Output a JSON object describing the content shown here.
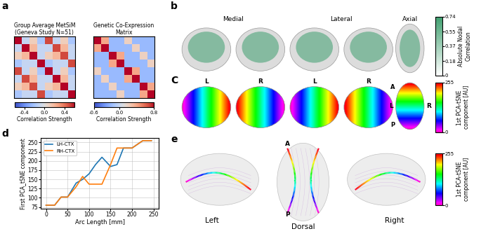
{
  "panels": {
    "a": {
      "label": "a",
      "heatmaps": [
        {
          "title": "Group Average MetSiM\n(Geneva Study N=51)",
          "cells": [
            [
              0.6,
              -0.1,
              0.1,
              -0.2,
              0.5,
              -0.1,
              0.1,
              -0.2
            ],
            [
              -0.1,
              0.6,
              0.2,
              -0.1,
              -0.1,
              0.5,
              0.2,
              -0.1
            ],
            [
              0.1,
              0.2,
              0.6,
              -0.1,
              0.1,
              0.2,
              0.5,
              -0.1
            ],
            [
              -0.2,
              -0.1,
              -0.1,
              0.6,
              -0.2,
              -0.1,
              -0.1,
              0.5
            ],
            [
              0.5,
              -0.1,
              0.1,
              -0.2,
              0.6,
              -0.1,
              0.1,
              -0.2
            ],
            [
              -0.1,
              0.5,
              0.2,
              -0.1,
              -0.1,
              0.6,
              0.2,
              -0.1
            ],
            [
              0.1,
              0.2,
              0.5,
              -0.1,
              0.1,
              0.2,
              0.6,
              -0.1
            ],
            [
              -0.2,
              -0.1,
              -0.1,
              0.5,
              -0.2,
              -0.1,
              -0.1,
              0.6
            ]
          ],
          "colorbar": {
            "label": "Correlation Strength",
            "range": [
              -0.6,
              0.6
            ],
            "ticks": [
              -0.4,
              0.0,
              0.4
            ]
          }
        },
        {
          "title": "Genetic Co-Expression\nMatrix",
          "cells": [
            [
              0.8,
              0.4,
              -0.2,
              -0.2,
              0.2,
              -0.2,
              -0.2,
              -0.2
            ],
            [
              0.4,
              0.8,
              -0.2,
              -0.2,
              -0.2,
              0.2,
              -0.2,
              -0.2
            ],
            [
              -0.2,
              -0.2,
              0.8,
              0.4,
              -0.2,
              -0.2,
              0.2,
              -0.2
            ],
            [
              -0.2,
              -0.2,
              0.4,
              0.8,
              -0.2,
              -0.2,
              -0.2,
              0.2
            ],
            [
              0.2,
              -0.2,
              -0.2,
              -0.2,
              0.8,
              0.4,
              -0.2,
              -0.2
            ],
            [
              -0.2,
              0.2,
              -0.2,
              -0.2,
              0.4,
              0.8,
              -0.2,
              -0.2
            ],
            [
              -0.2,
              -0.2,
              0.2,
              -0.2,
              -0.2,
              -0.2,
              0.8,
              0.4
            ],
            [
              -0.2,
              -0.2,
              -0.2,
              0.2,
              -0.2,
              -0.2,
              0.4,
              0.8
            ]
          ],
          "colorbar": {
            "label": "Correlation Strength",
            "range": [
              -0.6,
              0.8
            ],
            "ticks": [
              -0.6,
              0.0,
              0.8
            ]
          }
        }
      ]
    },
    "b": {
      "label": "b",
      "views": [
        "Medial",
        "Lateral",
        "Axial"
      ],
      "color": "#3f9f6f",
      "colorbar": {
        "label": "Absolute Nodal\nCorrelation",
        "range": [
          0,
          0.74
        ],
        "ticks": [
          0,
          0.18,
          0.37,
          0.55,
          0.74
        ]
      }
    },
    "c": {
      "label": "C",
      "hemisphere_labels": [
        "L",
        "R",
        "L",
        "R",
        "L",
        "R"
      ],
      "axial_labels": [
        "A",
        "P"
      ],
      "colorbar": {
        "label": "1st PCA-tSNE\ncomponent [AU]",
        "range": [
          0,
          255
        ],
        "ticks": [
          0,
          255
        ]
      }
    },
    "e": {
      "label": "e",
      "views": [
        "Left",
        "Dorsal",
        "Right"
      ],
      "axial_labels": [
        "A",
        "P"
      ],
      "colorbar": {
        "label": "1st PCA-tSNE\ncomponent [AU]",
        "range": [
          0,
          255
        ],
        "ticks": [
          0,
          255
        ]
      }
    }
  },
  "chart_data": {
    "type": "line",
    "panel_label": "d",
    "x_label": "Arc Length [mm]",
    "y_label": "First PCA_tSNE component",
    "x": [
      0,
      20,
      35,
      50,
      70,
      85,
      100,
      115,
      130,
      150,
      165,
      180,
      200,
      225,
      245
    ],
    "series": [
      {
        "name": "LH-CTX",
        "color": "#1f77b4",
        "values": [
          80,
          80,
          102,
          102,
          140,
          150,
          165,
          190,
          210,
          185,
          190,
          235,
          235,
          255,
          255
        ]
      },
      {
        "name": "RH-CTX",
        "color": "#ff7f0e",
        "values": [
          80,
          80,
          102,
          102,
          130,
          158,
          137,
          137,
          137,
          190,
          235,
          235,
          235,
          255,
          255
        ]
      }
    ],
    "xlim": [
      -12,
      262
    ],
    "ylim": [
      70,
      262
    ],
    "xticks": [
      0,
      50,
      100,
      150,
      200,
      250
    ],
    "yticks": [
      75,
      100,
      125,
      150,
      175,
      200,
      225,
      250
    ],
    "legend": "upper left",
    "grid": true
  }
}
